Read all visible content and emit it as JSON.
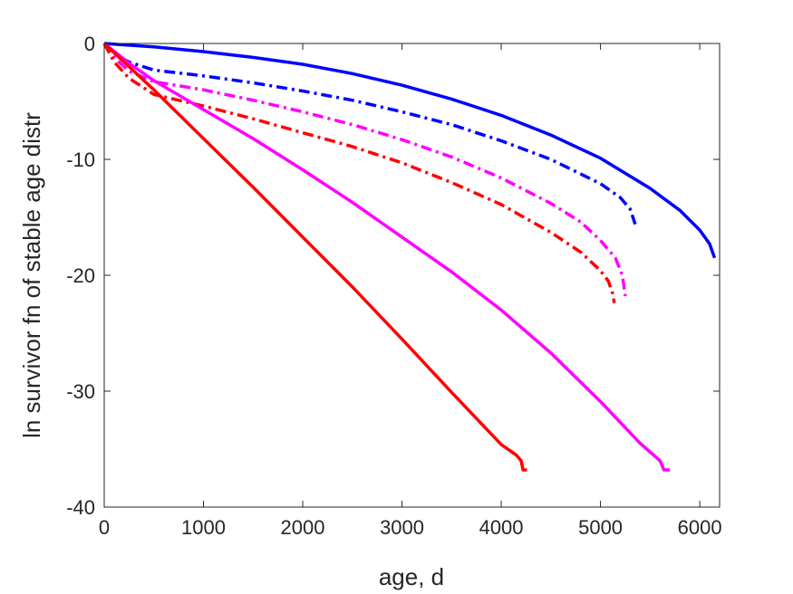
{
  "chart_data": {
    "type": "line",
    "title": "",
    "xlabel": "age, d",
    "ylabel": "ln survivor fn of stable age distr",
    "xlim": [
      0,
      6200
    ],
    "ylim": [
      -40,
      0
    ],
    "xticks": [
      0,
      1000,
      2000,
      3000,
      4000,
      5000,
      6000
    ],
    "yticks": [
      -40,
      -30,
      -20,
      -10,
      0
    ],
    "xtick_labels": [
      "0",
      "1000",
      "2000",
      "3000",
      "4000",
      "5000",
      "6000"
    ],
    "ytick_labels": [
      "-40",
      "-30",
      "-20",
      "-10",
      "0"
    ],
    "grid": false,
    "legend": "none",
    "series": [
      {
        "color": "#0000ff",
        "style": "solid",
        "x": [
          0,
          500,
          1000,
          1500,
          2000,
          2500,
          3000,
          3500,
          4000,
          4500,
          5000,
          5500,
          5800,
          6000,
          6100,
          6150
        ],
        "y": [
          0,
          -0.3,
          -0.7,
          -1.2,
          -1.8,
          -2.6,
          -3.6,
          -4.8,
          -6.2,
          -7.9,
          -9.9,
          -12.5,
          -14.4,
          -16.1,
          -17.3,
          -18.5
        ]
      },
      {
        "color": "#0000ff",
        "style": "dashdot",
        "x": [
          0,
          100,
          250,
          500,
          1000,
          1500,
          2000,
          2500,
          3000,
          3500,
          4000,
          4500,
          5000,
          5200,
          5300,
          5350
        ],
        "y": [
          0,
          -0.9,
          -1.6,
          -2.3,
          -2.8,
          -3.4,
          -4.1,
          -4.9,
          -5.9,
          -7.0,
          -8.4,
          -10.0,
          -12.1,
          -13.3,
          -14.3,
          -15.6
        ]
      },
      {
        "color": "#ff00ff",
        "style": "dashdot",
        "x": [
          0,
          100,
          250,
          500,
          1000,
          1500,
          2000,
          2500,
          3000,
          3500,
          4000,
          4500,
          4800,
          5000,
          5150,
          5220,
          5250
        ],
        "y": [
          0,
          -1.2,
          -2.4,
          -3.3,
          -4.0,
          -4.9,
          -5.9,
          -7.0,
          -8.3,
          -9.8,
          -11.6,
          -13.8,
          -15.4,
          -17.0,
          -18.5,
          -20.0,
          -21.8
        ]
      },
      {
        "color": "#ff0000",
        "style": "dashdot",
        "x": [
          0,
          100,
          250,
          500,
          1000,
          1500,
          2000,
          2500,
          3000,
          3500,
          4000,
          4500,
          4800,
          5000,
          5080,
          5120,
          5140
        ],
        "y": [
          0,
          -1.6,
          -3.0,
          -4.4,
          -5.4,
          -6.5,
          -7.7,
          -8.9,
          -10.3,
          -12.0,
          -13.9,
          -16.3,
          -18.0,
          -19.6,
          -20.5,
          -21.5,
          -22.4
        ]
      },
      {
        "color": "#ff00ff",
        "style": "solid",
        "x": [
          0,
          250,
          500,
          1000,
          1500,
          2000,
          2500,
          3000,
          3500,
          4000,
          4500,
          5000,
          5400,
          5600,
          5640,
          5660,
          5700
        ],
        "y": [
          0,
          -1.7,
          -3.2,
          -5.7,
          -8.2,
          -10.9,
          -13.7,
          -16.7,
          -19.7,
          -23.0,
          -26.7,
          -30.9,
          -34.5,
          -36.0,
          -36.8,
          -36.8,
          -36.8
        ]
      },
      {
        "color": "#ff0000",
        "style": "solid",
        "x": [
          0,
          500,
          1000,
          1500,
          2000,
          2500,
          3000,
          3500,
          4000,
          4150,
          4200,
          4220,
          4260
        ],
        "y": [
          0,
          -4.0,
          -8.2,
          -12.4,
          -16.7,
          -21.0,
          -25.5,
          -30.1,
          -34.6,
          -35.5,
          -36.0,
          -36.8,
          -36.8
        ]
      }
    ]
  }
}
